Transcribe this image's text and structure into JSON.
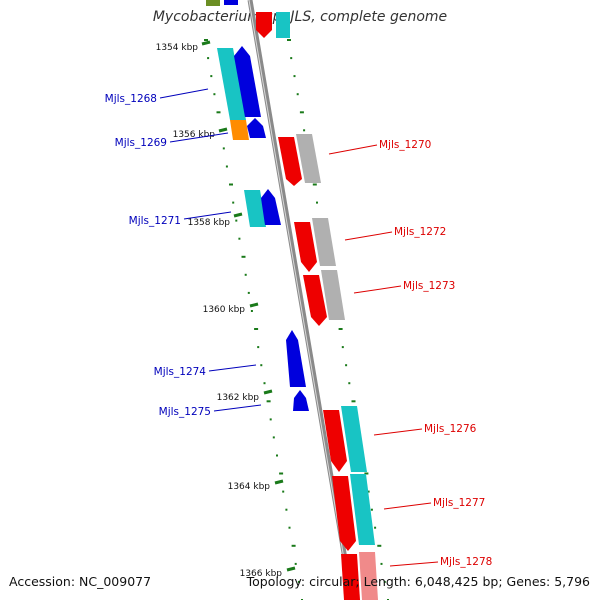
{
  "title": "Mycobacterium sp. JLS, complete genome",
  "footer": {
    "accession": "Accession: NC_009077",
    "summary": "Topology: circular; Length: 6,048,425 bp; Genes: 5,796"
  },
  "colors": {
    "backbone": "#8a8a8a",
    "tick": "#1a7a1a",
    "label_left": "#0000bb",
    "label_right": "#dd0000",
    "cyan": "#18c4c4",
    "blue": "#0000dd",
    "orange": "#ff8c00",
    "red": "#ee0000",
    "gray": "#b0b0b0",
    "pink": "#f08a8a",
    "olive": "#6b8e23"
  },
  "ruler_labels": [
    "1354 kbp",
    "1356 kbp",
    "1358 kbp",
    "1360 kbp",
    "1362 kbp",
    "1364 kbp",
    "1366 kbp"
  ],
  "gene_labels": {
    "left": [
      "Mjls_1268",
      "Mjls_1269",
      "Mjls_1271",
      "Mjls_1274",
      "Mjls_1275"
    ],
    "right": [
      "Mjls_1270",
      "Mjls_1272",
      "Mjls_1273",
      "Mjls_1276",
      "Mjls_1277",
      "Mjls_1278"
    ]
  }
}
